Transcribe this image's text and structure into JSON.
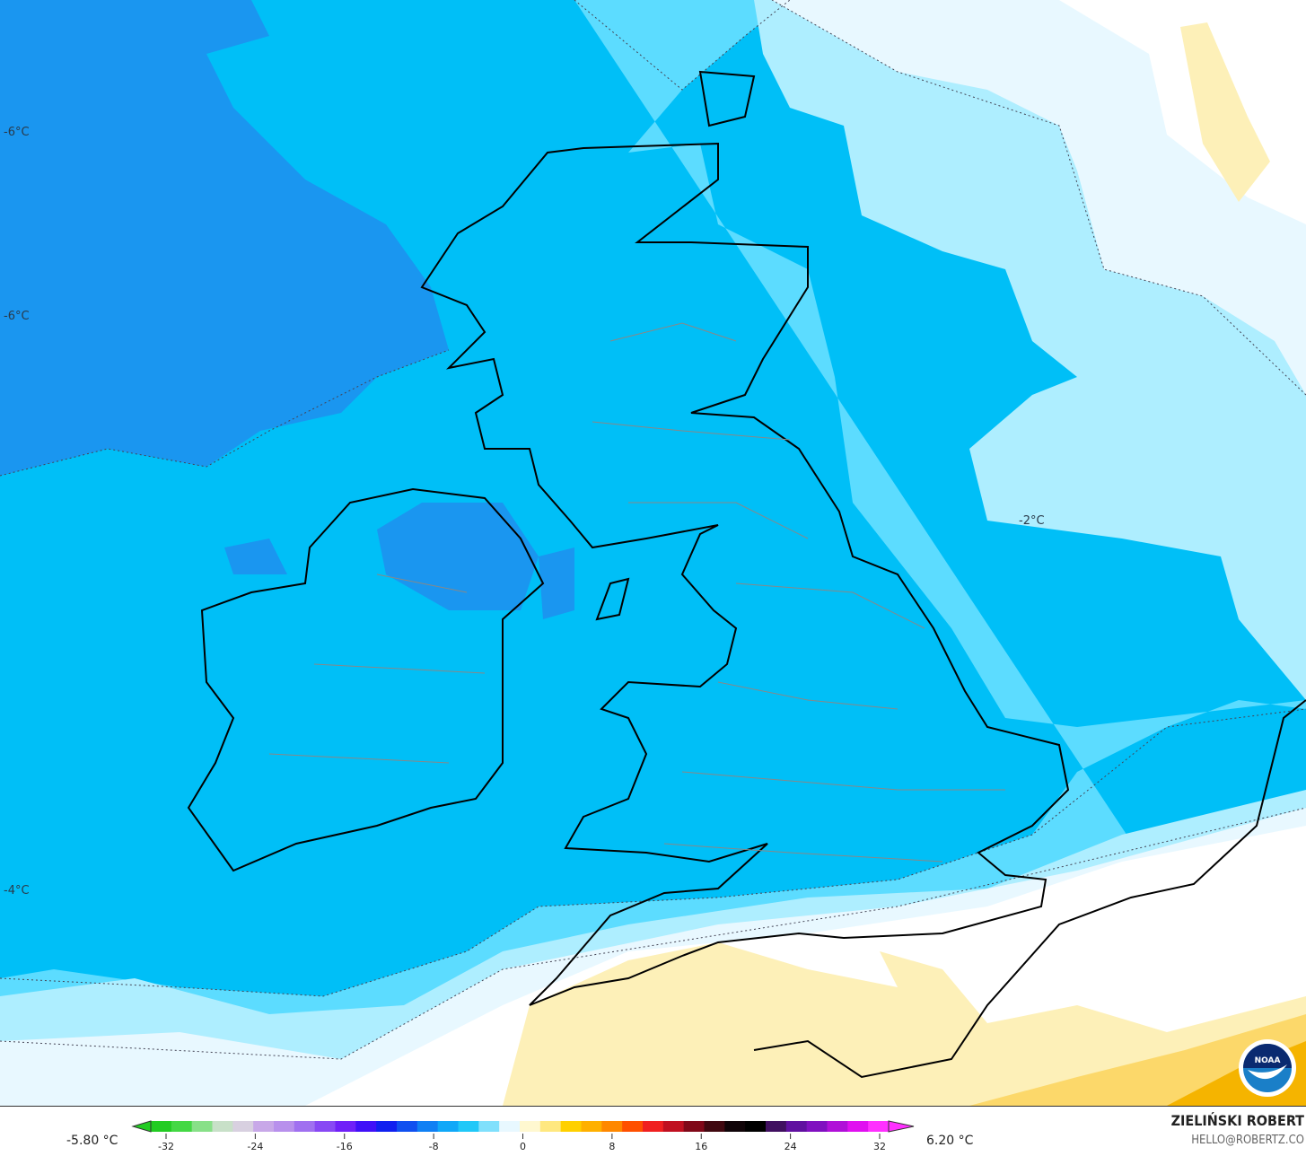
{
  "map": {
    "contour_labels": [
      {
        "text": "-6°C"
      },
      {
        "text": "-6°C"
      },
      {
        "text": "-4°C"
      },
      {
        "text": "-2°C"
      }
    ],
    "colors": {
      "deep_blue": "#1a96f0",
      "blue": "#00bff7",
      "uk_blue": "#12b6f2",
      "light_blue": "#5cdcff",
      "pale_blue": "#aeeeff",
      "ice": "#e8f8ff",
      "white": "#ffffff",
      "pale_yellow": "#fdf0b8",
      "yellow": "#fcd86a",
      "orange": "#f5b400"
    },
    "logo": "NOAA"
  },
  "legend": {
    "min_label": "-5.80 °C",
    "max_label": "6.20 °C",
    "ticks": [
      "-32",
      "-24",
      "-16",
      "-8",
      "0",
      "8",
      "16",
      "24",
      "32"
    ],
    "colorbar": [
      "#22cc22",
      "#44d844",
      "#88e088",
      "#c8e0c8",
      "#d8d0e0",
      "#c8a8e8",
      "#b890ec",
      "#a070f0",
      "#8848f4",
      "#7020f8",
      "#4010f8",
      "#1020f0",
      "#1050f0",
      "#1080f4",
      "#10a8f8",
      "#20c8f8",
      "#80e0fc",
      "#e8f8ff",
      "#fff8d0",
      "#ffe880",
      "#ffd000",
      "#ffb000",
      "#ff8800",
      "#ff5000",
      "#f02020",
      "#c01020",
      "#800818",
      "#400810",
      "#100408",
      "#000000",
      "#401060",
      "#6010a0",
      "#8010c0",
      "#b010d8",
      "#e010f0",
      "#ff30ff"
    ],
    "author": "ZIELIŃSKI ROBERT",
    "contact": "HELLO@ROBERTZ.CO"
  }
}
